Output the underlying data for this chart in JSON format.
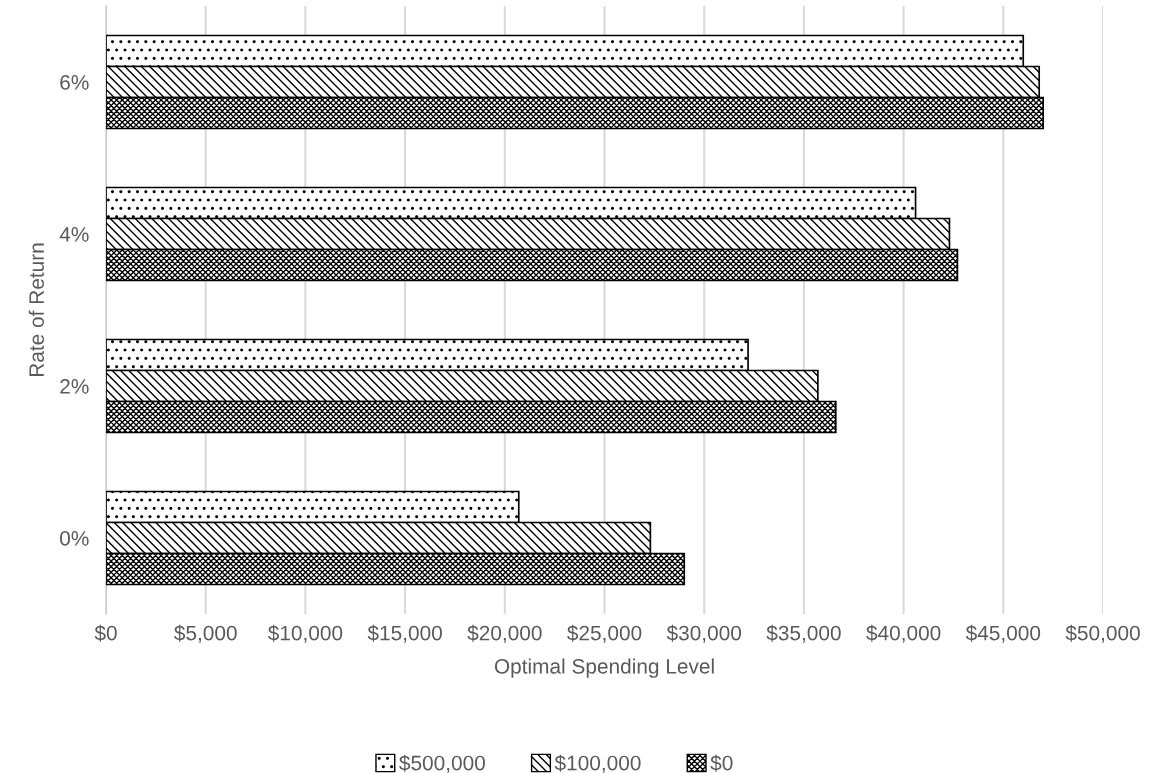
{
  "chart_data": {
    "type": "bar",
    "orientation": "horizontal",
    "xlabel": "Optimal Spending Level",
    "ylabel": "Rate of Return",
    "categories": [
      "6%",
      "4%",
      "2%",
      "0%"
    ],
    "series": [
      {
        "name": "$500,000",
        "color": "#000000",
        "values": [
          46000,
          40600,
          32200,
          20700
        ]
      },
      {
        "name": "$100,000",
        "color": "#000000",
        "values": [
          46800,
          42300,
          35700,
          27300
        ]
      },
      {
        "name": "$0",
        "color": "#000000",
        "values": [
          47000,
          42700,
          36600,
          29000
        ]
      }
    ],
    "xlim": [
      0,
      50000
    ],
    "xticks": [
      {
        "value": 0,
        "label": "$0"
      },
      {
        "value": 5000,
        "label": "$5,000"
      },
      {
        "value": 10000,
        "label": "$10,000"
      },
      {
        "value": 15000,
        "label": "$15,000"
      },
      {
        "value": 20000,
        "label": "$20,000"
      },
      {
        "value": 25000,
        "label": "$25,000"
      },
      {
        "value": 30000,
        "label": "$30,000"
      },
      {
        "value": 35000,
        "label": "$35,000"
      },
      {
        "value": 40000,
        "label": "$40,000"
      },
      {
        "value": 45000,
        "label": "$45,000"
      },
      {
        "value": 50000,
        "label": "$50,000"
      }
    ],
    "grid": "x",
    "legend": "bottom"
  }
}
